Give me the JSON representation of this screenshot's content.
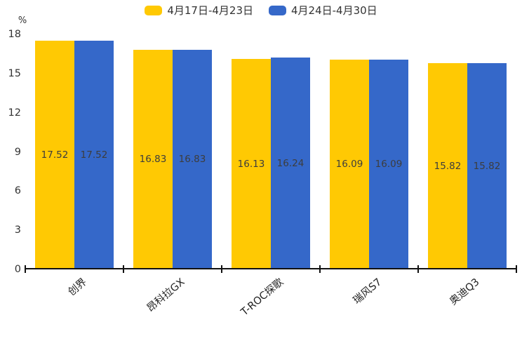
{
  "chart_data": {
    "type": "bar",
    "title": "",
    "unit_label": "%",
    "legend_position": "top",
    "grid": false,
    "categories": [
      "创界",
      "昂科拉GX",
      "T-ROC探歌",
      "瑞风S7",
      "奥迪Q3"
    ],
    "series": [
      {
        "name": "4月17日-4月23日",
        "color": "#FFC903",
        "values": [
          17.52,
          16.83,
          16.13,
          16.09,
          15.82
        ],
        "labels": [
          "17.52",
          "16.83",
          "16.13",
          "16.09",
          "15.82"
        ]
      },
      {
        "name": "4月24日-4月30日",
        "color": "#3568C9",
        "values": [
          17.52,
          16.83,
          16.24,
          16.09,
          15.82
        ],
        "labels": [
          "17.52",
          "16.83",
          "16.24",
          "16.09",
          "15.82"
        ]
      }
    ],
    "y_axis": {
      "min": 0,
      "max": 18,
      "ticks": [
        0,
        3,
        6,
        9,
        12,
        15,
        18
      ]
    },
    "colors": {
      "axis": "#111111",
      "tick_text": "#333333",
      "value_text": "#3d3d3d"
    }
  }
}
